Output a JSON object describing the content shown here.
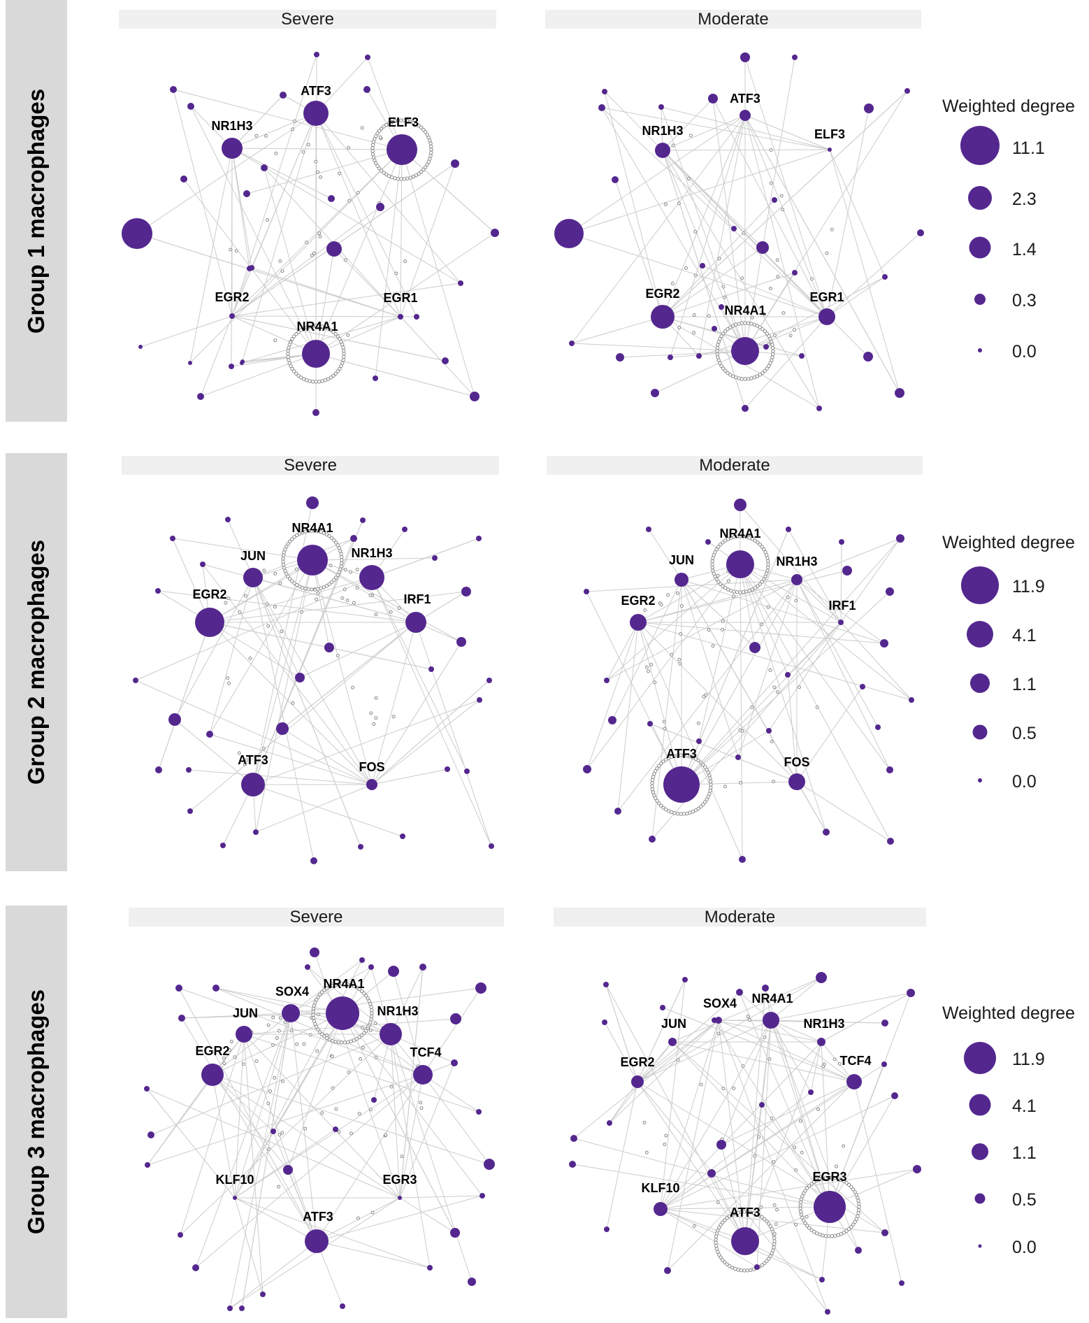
{
  "colors": {
    "node": "#54278f",
    "edge": "#cccccc",
    "small_node": "#888888",
    "strip": "#d9d9d9",
    "panel_strip": "#f0f0f0"
  },
  "rows": [
    {
      "label": "Group 1 macrophages",
      "panels": [
        {
          "title": "Severe",
          "hubs": [
            "ATF3",
            "NR1H3",
            "ELF3",
            "EGR2",
            "EGR1",
            "NR4A1"
          ]
        },
        {
          "title": "Moderate",
          "hubs": [
            "ATF3",
            "NR1H3",
            "ELF3",
            "EGR2",
            "NR4A1",
            "EGR1"
          ]
        }
      ],
      "legend": {
        "title": "Weighted degree",
        "values": [
          "11.1",
          "2.3",
          "1.4",
          "0.3",
          "0.0"
        ]
      }
    },
    {
      "label": "Group 2 macrophages",
      "panels": [
        {
          "title": "Severe",
          "hubs": [
            "NR4A1",
            "JUN",
            "NR1H3",
            "EGR2",
            "IRF1",
            "ATF3",
            "FOS"
          ]
        },
        {
          "title": "Moderate",
          "hubs": [
            "NR4A1",
            "JUN",
            "NR1H3",
            "EGR2",
            "IRF1",
            "ATF3",
            "FOS"
          ]
        }
      ],
      "legend": {
        "title": "Weighted degree",
        "values": [
          "11.9",
          "4.1",
          "1.1",
          "0.5",
          "0.0"
        ]
      }
    },
    {
      "label": "Group 3 macrophages",
      "panels": [
        {
          "title": "Severe",
          "hubs": [
            "SOX4",
            "NR4A1",
            "JUN",
            "NR1H3",
            "EGR2",
            "TCF4",
            "KLF10",
            "EGR3",
            "ATF3"
          ]
        },
        {
          "title": "Moderate",
          "hubs": [
            "SOX4",
            "NR4A1",
            "JUN",
            "NR1H3",
            "EGR2",
            "TCF4",
            "KLF10",
            "EGR3",
            "ATF3"
          ]
        }
      ],
      "legend": {
        "title": "Weighted degree",
        "values": [
          "11.9",
          "4.1",
          "1.1",
          "0.5",
          "0.0"
        ]
      }
    }
  ]
}
